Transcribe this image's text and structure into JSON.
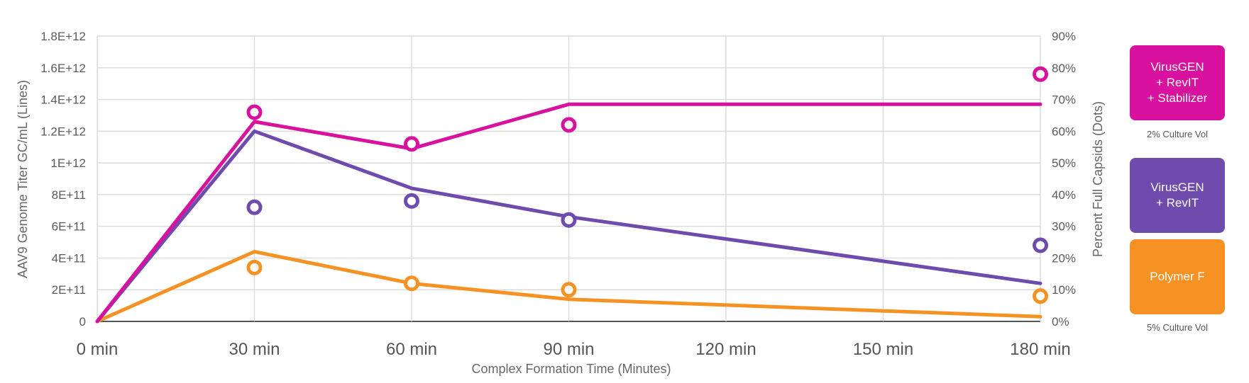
{
  "chart_data": {
    "type": "line",
    "x_categories": [
      "0 min",
      "30 min",
      "60 min",
      "90 min",
      "120 min",
      "150 min",
      "180 min"
    ],
    "x_minutes": [
      0,
      30,
      60,
      90,
      120,
      150,
      180
    ],
    "xlabel": "Complex Formation Time (Minutes)",
    "ylabel_left": "AAV9 Genome Titer GC/mL (Lines)",
    "ylabel_right": "Percent Full Capsids (Dots)",
    "ylim_left": [
      0,
      1800000000000
    ],
    "ylim_right": [
      0,
      90
    ],
    "yticks_left": [
      {
        "value": 0,
        "label": "0"
      },
      {
        "value": 200000000000,
        "label": "2E+11"
      },
      {
        "value": 400000000000,
        "label": "4E+11"
      },
      {
        "value": 600000000000,
        "label": "6E+11"
      },
      {
        "value": 800000000000,
        "label": "8E+11"
      },
      {
        "value": 1000000000000,
        "label": "1E+12"
      },
      {
        "value": 1200000000000,
        "label": "1.2E+12"
      },
      {
        "value": 1400000000000,
        "label": "1.4E+12"
      },
      {
        "value": 1600000000000,
        "label": "1.6E+12"
      },
      {
        "value": 1800000000000,
        "label": "1.8E+12"
      }
    ],
    "yticks_right": [
      {
        "value": 0,
        "label": "0%"
      },
      {
        "value": 10,
        "label": "10%"
      },
      {
        "value": 20,
        "label": "20%"
      },
      {
        "value": 30,
        "label": "30%"
      },
      {
        "value": 40,
        "label": "40%"
      },
      {
        "value": 50,
        "label": "50%"
      },
      {
        "value": 60,
        "label": "60%"
      },
      {
        "value": 70,
        "label": "70%"
      },
      {
        "value": 80,
        "label": "80%"
      },
      {
        "value": 90,
        "label": "90%"
      }
    ],
    "grid": true,
    "legend_position": "right",
    "series": [
      {
        "name": "VirusGEN\n+ RevIT\n+ Stabilizer",
        "color": "#d8119e",
        "titer_lines": [
          [
            0,
            0
          ],
          [
            30,
            1260000000000
          ],
          [
            60,
            1090000000000
          ],
          [
            90,
            1370000000000
          ],
          [
            180,
            1370000000000
          ]
        ],
        "full_capsid_dots": [
          [
            30,
            66
          ],
          [
            60,
            56
          ],
          [
            90,
            62
          ],
          [
            180,
            78
          ]
        ]
      },
      {
        "name": "VirusGEN\n+ RevIT",
        "color": "#6f4bad",
        "titer_lines": [
          [
            0,
            0
          ],
          [
            30,
            1200000000000
          ],
          [
            60,
            840000000000
          ],
          [
            90,
            660000000000
          ],
          [
            180,
            240000000000
          ]
        ],
        "full_capsid_dots": [
          [
            30,
            36
          ],
          [
            60,
            38
          ],
          [
            90,
            32
          ],
          [
            180,
            24
          ]
        ]
      },
      {
        "name": "Polymer F",
        "color": "#f59223",
        "titer_lines": [
          [
            0,
            0
          ],
          [
            30,
            440000000000
          ],
          [
            60,
            240000000000
          ],
          [
            90,
            140000000000
          ],
          [
            180,
            30000000000
          ]
        ],
        "full_capsid_dots": [
          [
            30,
            17
          ],
          [
            60,
            12
          ],
          [
            90,
            10
          ],
          [
            180,
            8
          ]
        ]
      }
    ],
    "legend_notes": [
      "2% Culture Vol",
      "5% Culture Vol"
    ]
  }
}
